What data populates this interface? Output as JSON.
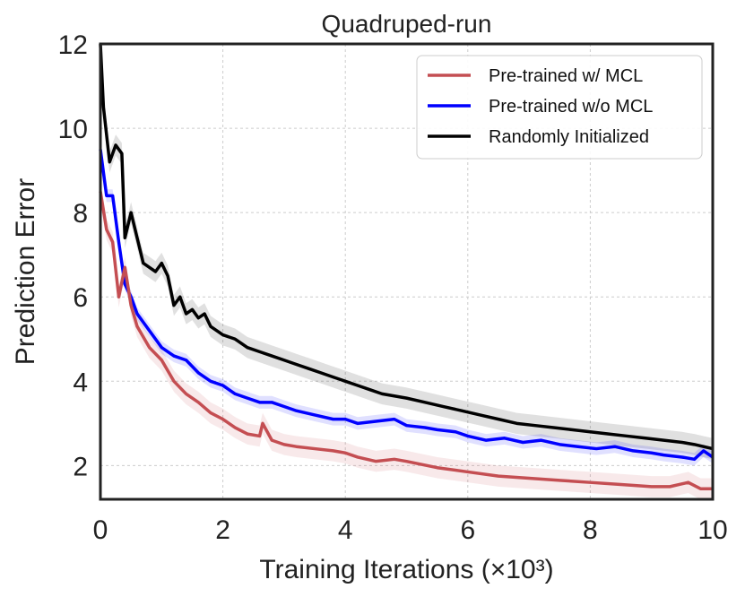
{
  "chart_data": {
    "type": "line",
    "title": "Quadruped-run",
    "xlabel": "Training Iterations (×10³)",
    "ylabel": "Prediction Error",
    "xlim": [
      0,
      10
    ],
    "ylim": [
      1.2,
      12
    ],
    "xticks": [
      0,
      2,
      4,
      6,
      8,
      10
    ],
    "yticks": [
      2,
      4,
      6,
      8,
      10,
      12
    ],
    "grid": true,
    "legend_position": "top-right",
    "series": [
      {
        "name": "Pre-trained w/ MCL",
        "color": "#c44e52",
        "x": [
          0,
          0.1,
          0.2,
          0.3,
          0.4,
          0.5,
          0.6,
          0.8,
          1.0,
          1.2,
          1.4,
          1.6,
          1.8,
          2.0,
          2.2,
          2.4,
          2.6,
          2.65,
          2.8,
          3.0,
          3.2,
          3.5,
          3.8,
          4.0,
          4.2,
          4.5,
          4.8,
          5.0,
          5.5,
          6.0,
          6.5,
          7.0,
          7.5,
          8.0,
          8.5,
          9.0,
          9.3,
          9.6,
          9.8,
          10.0
        ],
        "y": [
          8.5,
          7.6,
          7.3,
          6.0,
          6.7,
          5.8,
          5.3,
          4.8,
          4.5,
          4.0,
          3.7,
          3.5,
          3.25,
          3.1,
          2.9,
          2.75,
          2.7,
          3.0,
          2.6,
          2.5,
          2.45,
          2.4,
          2.35,
          2.3,
          2.2,
          2.1,
          2.15,
          2.1,
          1.95,
          1.85,
          1.75,
          1.7,
          1.65,
          1.6,
          1.55,
          1.5,
          1.5,
          1.6,
          1.45,
          1.45
        ],
        "band": 0.25
      },
      {
        "name": "Pre-trained w/o MCL",
        "color": "#0000ff",
        "x": [
          0,
          0.1,
          0.2,
          0.3,
          0.4,
          0.5,
          0.6,
          0.8,
          1.0,
          1.2,
          1.4,
          1.6,
          1.8,
          2.0,
          2.2,
          2.4,
          2.6,
          2.8,
          3.0,
          3.2,
          3.5,
          3.8,
          4.0,
          4.2,
          4.5,
          4.8,
          5.0,
          5.3,
          5.5,
          5.8,
          6.0,
          6.3,
          6.6,
          6.9,
          7.2,
          7.5,
          7.8,
          8.1,
          8.4,
          8.7,
          9.0,
          9.2,
          9.5,
          9.7,
          9.85,
          10.0
        ],
        "y": [
          9.5,
          8.4,
          8.4,
          7.3,
          6.3,
          6.0,
          5.6,
          5.2,
          4.8,
          4.6,
          4.5,
          4.2,
          4.0,
          3.9,
          3.7,
          3.6,
          3.5,
          3.5,
          3.4,
          3.3,
          3.2,
          3.1,
          3.1,
          3.0,
          3.05,
          3.1,
          2.95,
          2.9,
          2.85,
          2.8,
          2.7,
          2.6,
          2.65,
          2.55,
          2.6,
          2.5,
          2.45,
          2.4,
          2.45,
          2.35,
          2.3,
          2.25,
          2.2,
          2.15,
          2.35,
          2.2
        ],
        "band": 0.15
      },
      {
        "name": "Randomly Initialized",
        "color": "#000000",
        "x": [
          0,
          0.05,
          0.15,
          0.25,
          0.35,
          0.4,
          0.5,
          0.6,
          0.7,
          0.8,
          0.9,
          1.0,
          1.1,
          1.2,
          1.3,
          1.4,
          1.5,
          1.6,
          1.7,
          1.8,
          2.0,
          2.2,
          2.4,
          2.6,
          2.8,
          3.0,
          3.2,
          3.4,
          3.6,
          3.8,
          4.0,
          4.2,
          4.4,
          4.6,
          4.8,
          5.0,
          5.3,
          5.6,
          5.9,
          6.2,
          6.5,
          6.8,
          7.1,
          7.4,
          7.7,
          8.0,
          8.3,
          8.6,
          8.9,
          9.2,
          9.5,
          9.7,
          9.85,
          10.0
        ],
        "y": [
          12.0,
          10.5,
          9.2,
          9.6,
          9.4,
          7.4,
          8.0,
          7.4,
          6.8,
          6.7,
          6.6,
          6.8,
          6.5,
          5.8,
          6.0,
          5.6,
          5.7,
          5.5,
          5.6,
          5.3,
          5.1,
          5.0,
          4.8,
          4.7,
          4.6,
          4.5,
          4.4,
          4.3,
          4.2,
          4.1,
          4.0,
          3.9,
          3.8,
          3.7,
          3.65,
          3.6,
          3.5,
          3.4,
          3.3,
          3.2,
          3.1,
          3.0,
          2.95,
          2.9,
          2.85,
          2.8,
          2.75,
          2.7,
          2.65,
          2.6,
          2.55,
          2.5,
          2.45,
          2.4
        ],
        "band": 0.25
      }
    ]
  }
}
